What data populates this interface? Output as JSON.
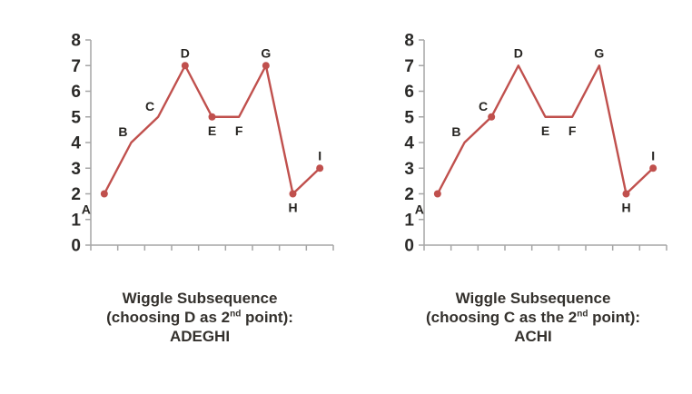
{
  "colors": {
    "line": "#c0504d",
    "marker": "#c0504d",
    "axis": "#a6a6a6",
    "text": "#34312d"
  },
  "figures": [
    {
      "caption_line1": "Wiggle Subsequence",
      "caption_line2_prefix": "(choosing D as 2",
      "caption_line2_sup": "nd",
      "caption_line2_suffix": " point):",
      "caption_line3": "ADEGHI"
    },
    {
      "caption_line1": "Wiggle Subsequence",
      "caption_line2_prefix": "(choosing C as the 2",
      "caption_line2_sup": "nd",
      "caption_line2_suffix": " point):",
      "caption_line3": "ACHI"
    }
  ],
  "chart_data": [
    {
      "type": "line",
      "title": "Wiggle Subsequence (choosing D as 2nd point): ADEGHI",
      "categories": [
        "A",
        "B",
        "C",
        "D",
        "E",
        "F",
        "G",
        "H",
        "I"
      ],
      "values": [
        2,
        4,
        5,
        7,
        5,
        5,
        7,
        2,
        3
      ],
      "subsequence": "ADEGHI",
      "markers_on": [
        "A",
        "D",
        "E",
        "G",
        "H",
        "I"
      ],
      "label_positions": {
        "A": "below-left",
        "B": "above-left",
        "C": "above-left",
        "D": "above",
        "E": "below",
        "F": "below",
        "G": "above",
        "H": "below",
        "I": "above"
      },
      "xlabel": "",
      "ylabel": "",
      "ylim": [
        0,
        8
      ],
      "yticks": [
        0,
        1,
        2,
        3,
        4,
        5,
        6,
        7,
        8
      ],
      "grid": false,
      "legend": "none",
      "line_color": "#c0504d",
      "marker_color": "#c0504d"
    },
    {
      "type": "line",
      "title": "Wiggle Subsequence (choosing C as the 2nd point): ACHI",
      "categories": [
        "A",
        "B",
        "C",
        "D",
        "E",
        "F",
        "G",
        "H",
        "I"
      ],
      "values": [
        2,
        4,
        5,
        7,
        5,
        5,
        7,
        2,
        3
      ],
      "subsequence": "ACHI",
      "markers_on": [
        "A",
        "C",
        "H",
        "I"
      ],
      "label_positions": {
        "A": "below-left",
        "B": "above-left",
        "C": "above-left",
        "D": "above",
        "E": "below",
        "F": "below",
        "G": "above",
        "H": "below",
        "I": "above"
      },
      "xlabel": "",
      "ylabel": "",
      "ylim": [
        0,
        8
      ],
      "yticks": [
        0,
        1,
        2,
        3,
        4,
        5,
        6,
        7,
        8
      ],
      "grid": false,
      "legend": "none",
      "line_color": "#c0504d",
      "marker_color": "#c0504d"
    }
  ]
}
